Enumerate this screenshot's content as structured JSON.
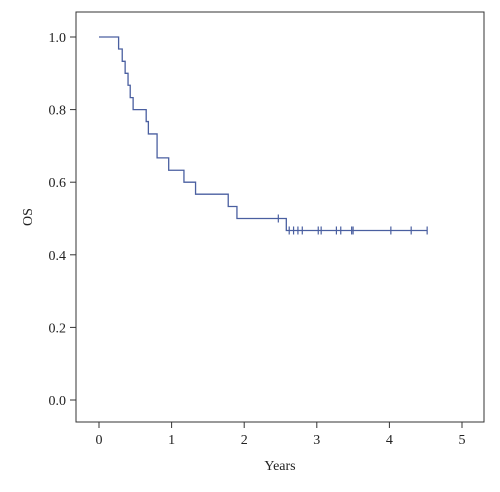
{
  "chart_data": {
    "type": "line",
    "title": "",
    "xlabel": "Years",
    "ylabel": "OS",
    "xlim": [
      0,
      5
    ],
    "ylim": [
      0,
      1
    ],
    "x_ticks": [
      "0",
      "1",
      "2",
      "3",
      "4",
      "5"
    ],
    "y_ticks": [
      "0.0",
      "0.2",
      "0.4",
      "0.6",
      "0.8",
      "1.0"
    ],
    "grid": false,
    "legend": "none",
    "series": [
      {
        "color": "#4a5fa0",
        "step": true,
        "x": [
          0,
          0.27,
          0.32,
          0.36,
          0.4,
          0.43,
          0.47,
          0.65,
          0.68,
          0.8,
          0.96,
          1.17,
          1.33,
          1.78,
          1.9,
          2.58
        ],
        "y": [
          1.0,
          0.967,
          0.933,
          0.9,
          0.867,
          0.833,
          0.8,
          0.767,
          0.733,
          0.667,
          0.633,
          0.6,
          0.567,
          0.533,
          0.5,
          0.467
        ],
        "end_x": 4.52,
        "censored_x": [
          2.47,
          2.62,
          2.68,
          2.74,
          2.8,
          3.02,
          3.06,
          3.27,
          3.33,
          3.48,
          3.5,
          4.02,
          4.3,
          4.52
        ],
        "censored_y": [
          0.5,
          0.467,
          0.467,
          0.467,
          0.467,
          0.467,
          0.467,
          0.467,
          0.467,
          0.467,
          0.467,
          0.467,
          0.467,
          0.467
        ]
      }
    ]
  }
}
